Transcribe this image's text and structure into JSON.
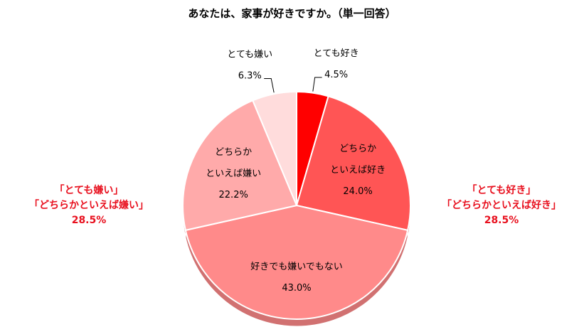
{
  "chart_data": {
    "type": "pie",
    "title": "あなたは、家事が好きですか。（単一回答）",
    "slices": [
      {
        "label": [
          "とても好き"
        ],
        "value": 4.5,
        "display": "4.5%",
        "color": "#ff0000"
      },
      {
        "label": [
          "どちらか",
          "といえば好き"
        ],
        "value": 24.0,
        "display": "24.0%",
        "color": "#ff5555"
      },
      {
        "label": [
          "好きでも嫌いでもない"
        ],
        "value": 43.0,
        "display": "43.0%",
        "color": "#ff8a8a"
      },
      {
        "label": [
          "どちらか",
          "といえば嫌い"
        ],
        "value": 22.2,
        "display": "22.2%",
        "color": "#ffaaaa"
      },
      {
        "label": [
          "とても嫌い"
        ],
        "value": 6.3,
        "display": "6.3%",
        "color": "#ffdcdc"
      }
    ],
    "groups": {
      "dislike": {
        "line1": "「とても嫌い」",
        "line2": "「どちらかといえば嫌い」",
        "value": "28.5%"
      },
      "like": {
        "line1": "「とても好き」",
        "line2": "「どちらかといえば好き」",
        "value": "28.5%"
      }
    }
  }
}
